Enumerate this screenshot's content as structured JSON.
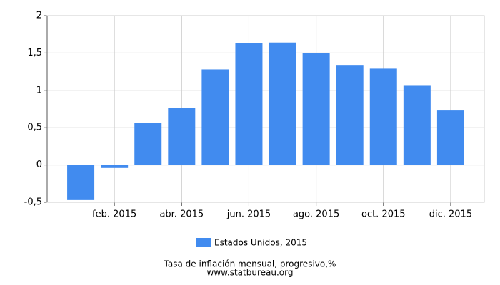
{
  "chart_data": {
    "type": "bar",
    "categories": [
      null,
      "feb. 2015",
      null,
      "abr. 2015",
      null,
      "jun. 2015",
      null,
      "ago. 2015",
      null,
      "oct. 2015",
      null,
      "dic. 2015"
    ],
    "series": [
      {
        "name": "Estados Unidos, 2015",
        "color": "#418bef",
        "values": [
          -0.47,
          -0.04,
          0.56,
          0.76,
          1.28,
          1.63,
          1.64,
          1.5,
          1.34,
          1.29,
          1.07,
          0.73
        ]
      }
    ],
    "ylim": [
      -0.5,
      2
    ],
    "yticks": [
      {
        "value": -0.5,
        "label": "-0,5"
      },
      0,
      {
        "value": 0.5,
        "label": "0,5"
      },
      1,
      {
        "value": 1.5,
        "label": "1,5"
      },
      2
    ],
    "grid": true,
    "caption": [
      "Tasa de inflación mensual, progresivo,%",
      "www.statbureau.org"
    ]
  }
}
